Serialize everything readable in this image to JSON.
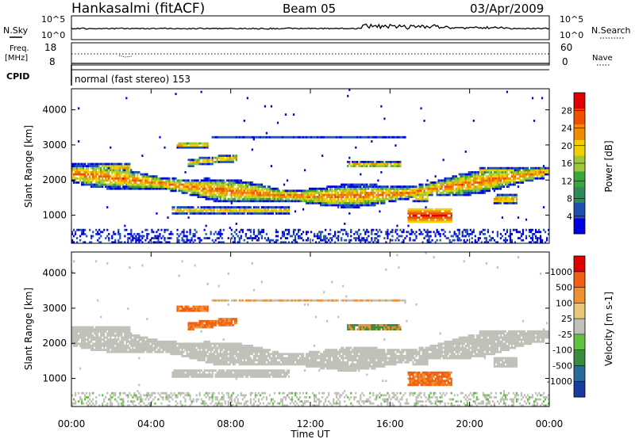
{
  "header": {
    "station": "Hankasalmi (fitACF)",
    "beam": "Beam 05",
    "date": "03/Apr/2009"
  },
  "status_panels": {
    "nsky_label": "N.Sky",
    "nsky_ticks": [
      "10^5",
      "10^0"
    ],
    "nsearch_label": "N.Search",
    "nsearch_ticks": [
      "10^5",
      "10^0"
    ],
    "freq_label": "Freq.",
    "freq_unit": "[MHz]",
    "freq_ticks": [
      "18",
      "8"
    ],
    "nave_label": "Nave",
    "nave_ticks": [
      "60",
      "0"
    ],
    "cpid_label": "CPID",
    "cpid_value": "normal (fast stereo) 153"
  },
  "chart_data": [
    {
      "type": "heatmap",
      "name": "power",
      "ylabel": "Slant Range [km]",
      "ylim": [
        200,
        4600
      ],
      "yticks": [
        "4000",
        "3000",
        "2000",
        "1000"
      ],
      "xlim_hours": [
        0,
        24
      ],
      "colorbar_label": "Power [dB]",
      "colorbar_ticks": [
        "28",
        "24",
        "20",
        "16",
        "12",
        "8",
        "4"
      ],
      "colors": [
        "#0000e0",
        "#2050b0",
        "#2e8a58",
        "#3aa53a",
        "#9cc83a",
        "#f0d000",
        "#f08c00",
        "#f05000",
        "#e00000"
      ]
    },
    {
      "type": "heatmap",
      "name": "velocity",
      "ylabel": "Slant Range [km]",
      "ylim": [
        200,
        4600
      ],
      "yticks": [
        "4000",
        "3000",
        "2000",
        "1000"
      ],
      "xlim_hours": [
        0,
        24
      ],
      "xlabel": "Time UT",
      "xticks": [
        "00:00",
        "04:00",
        "08:00",
        "12:00",
        "16:00",
        "20:00",
        "00:00"
      ],
      "colorbar_label": "Velocity [m s-1]",
      "colorbar_ticks": [
        "1000",
        "500",
        "100",
        "25",
        "-25",
        "-100",
        "-500",
        "-1000"
      ],
      "colors": [
        "#1a3aa0",
        "#2a6a9a",
        "#3a8a40",
        "#60c040",
        "#c0c0b8",
        "#e8c878",
        "#f09030",
        "#f06010",
        "#e00000"
      ]
    }
  ]
}
